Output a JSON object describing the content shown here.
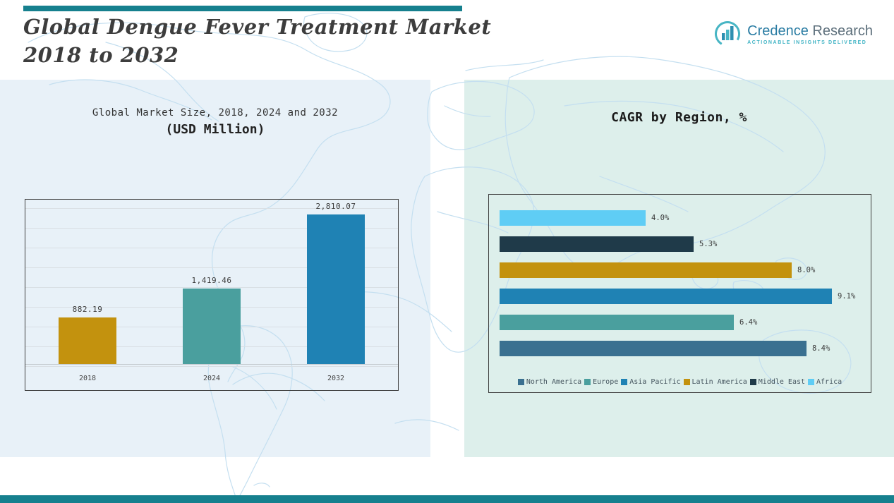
{
  "header": {
    "title_line1": "Global Dengue Fever Treatment Market",
    "title_line2": "2018 to 2032"
  },
  "logo": {
    "brand_part1": "Credence",
    "brand_part2": " Research",
    "tagline": "Actionable Insights Delivered"
  },
  "chart_data": [
    {
      "id": "market-size",
      "type": "bar",
      "orientation": "vertical",
      "title": "Global Market Size, 2018, 2024 and 2032",
      "subtitle": "(USD Million)",
      "categories": [
        "2018",
        "2024",
        "2032"
      ],
      "values": [
        882.19,
        1419.46,
        2810.07
      ],
      "value_labels": [
        "882.19",
        "1,419.46",
        "2,810.07"
      ],
      "bar_colors": [
        "#c3920e",
        "#4a9f9e",
        "#1f82b4"
      ],
      "ylim": [
        0,
        3000
      ],
      "grid": true,
      "legend_position": "none"
    },
    {
      "id": "cagr-by-region",
      "type": "bar",
      "orientation": "horizontal",
      "title": "CAGR by Region, %",
      "categories": [
        "Africa",
        "Middle East",
        "Latin America",
        "Asia Pacific",
        "Europe",
        "North America"
      ],
      "values": [
        4.0,
        5.3,
        8.0,
        9.1,
        6.4,
        8.4
      ],
      "value_labels": [
        "4.0%",
        "5.3%",
        "8.0%",
        "9.1%",
        "6.4%",
        "8.4%"
      ],
      "bar_colors": [
        "#5fcdf5",
        "#1f3a49",
        "#c3920e",
        "#1f82b4",
        "#4a9f9e",
        "#3a7090"
      ],
      "xlim": [
        0,
        10
      ],
      "grid": false,
      "legend_position": "bottom",
      "legend": [
        {
          "label": "North America",
          "color": "#3a7090"
        },
        {
          "label": "Europe",
          "color": "#4a9f9e"
        },
        {
          "label": "Asia Pacific",
          "color": "#1f82b4"
        },
        {
          "label": "Latin America",
          "color": "#c3920e"
        },
        {
          "label": "Middle East",
          "color": "#1f3a49"
        },
        {
          "label": "Africa",
          "color": "#5fcdf5"
        }
      ]
    }
  ],
  "theme": {
    "accent_teal": "#16808e",
    "panel_left_bg": "#e8f1f8",
    "panel_right_bg": "#ddefeb",
    "map_line": "#c4dff0",
    "text": "#3c3c3c"
  }
}
